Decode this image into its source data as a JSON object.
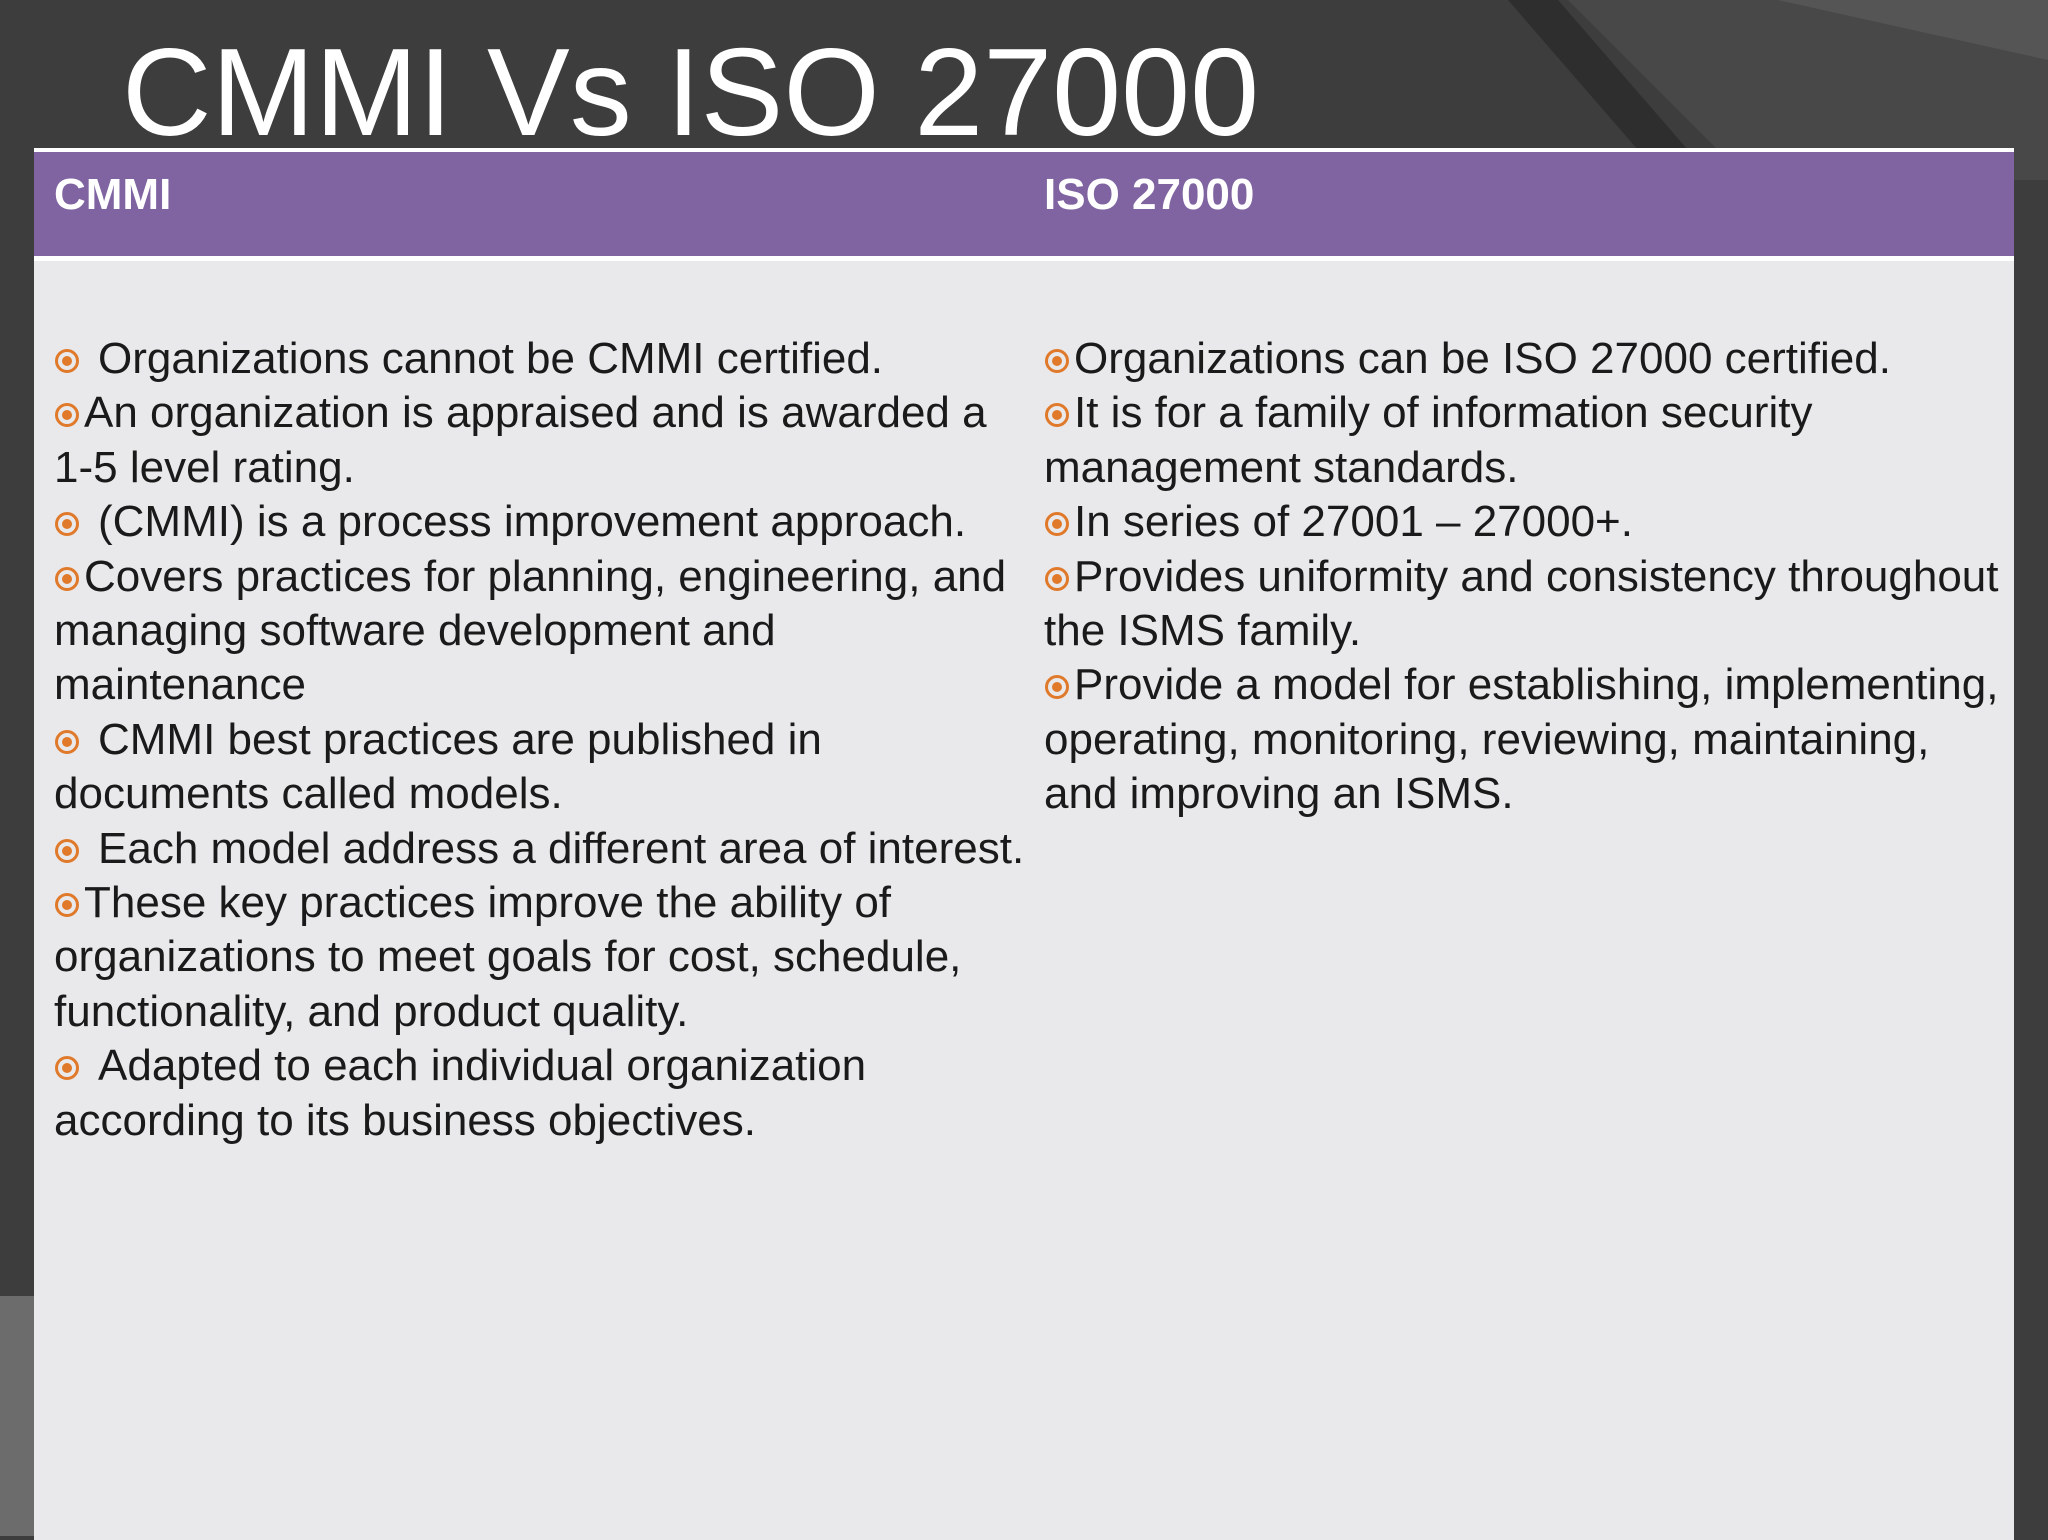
{
  "slide": {
    "title": "CMMI Vs ISO 27000"
  },
  "table": {
    "headers": [
      "CMMI",
      "ISO 27000"
    ],
    "cmmi_items": [
      {
        "text": "Organizations cannot be CMMI certified.",
        "spaced": true
      },
      {
        "text": "An organization is appraised and is awarded a 1-5 level rating.",
        "spaced": false
      },
      {
        "text": "(CMMI) is a process improvement approach.",
        "spaced": true
      },
      {
        "text": "Covers practices for planning, engineering, and managing software development and maintenance",
        "spaced": false
      },
      {
        "text": "CMMI best practices are published in documents called models.",
        "spaced": true
      },
      {
        "text": "Each model address a different area of interest.",
        "spaced": true
      },
      {
        "text": "These key practices improve the ability of organizations to meet goals for cost, schedule, functionality, and product quality.",
        "spaced": false
      },
      {
        "text": "Adapted to each individual organization according to its business objectives.",
        "spaced": true
      }
    ],
    "iso_items": [
      {
        "text": "Organizations can be ISO 27000 certified.",
        "spaced": false
      },
      {
        "text": "It is for a family of information security management standards.",
        "spaced": false
      },
      {
        "text": "In series of 27001 – 27000+.",
        "spaced": false
      },
      {
        "text": "Provides uniformity and consistency throughout the ISMS family.",
        "spaced": false
      },
      {
        "text": "Provide a model for establishing, implementing, operating, monitoring, reviewing, maintaining, and improving an ISMS.",
        "spaced": false
      }
    ]
  },
  "colors": {
    "background": "#3d3d3d",
    "header": "#7f64a1",
    "panel": "#e9e8eb",
    "bullet": "#e07a2a",
    "text": "#1a1a1a"
  },
  "icons": {
    "bullet": "circled-dot-bullet-icon"
  }
}
